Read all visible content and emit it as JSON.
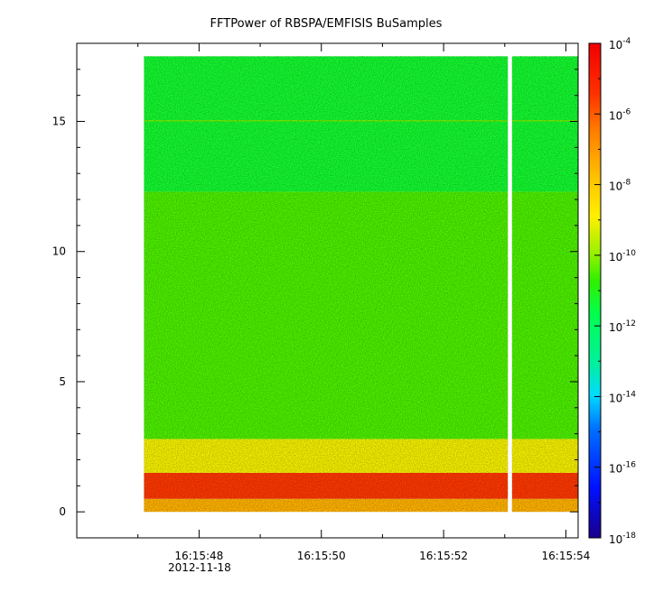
{
  "chart_data": {
    "type": "heatmap",
    "title": "FFTPower of RBSPA/EMFISIS  BuSamples",
    "xlabel": "",
    "ylabel": "",
    "x_ticks": [
      "16:15:48",
      "16:15:50",
      "16:15:52",
      "16:15:54"
    ],
    "x_date_label": "2012-11-18",
    "x_range_seconds": [
      46.0,
      54.2
    ],
    "data_time_range_seconds": [
      47.1,
      54.2
    ],
    "gap_seconds": [
      53.05,
      53.12
    ],
    "y_ticks": [
      0,
      5,
      10,
      15
    ],
    "ylim": [
      -1.0,
      18.0
    ],
    "data_frequency_range": [
      0.0,
      17.5
    ],
    "colorbar": {
      "scale": "log",
      "range": [
        1e-18,
        0.0001
      ],
      "tick_bases": [
        "10",
        "10",
        "10",
        "10",
        "10",
        "10",
        "10",
        "10"
      ],
      "tick_exponents": [
        "-18",
        "-16",
        "-14",
        "-12",
        "-10",
        "-8",
        "-6",
        "-4"
      ]
    },
    "features": [
      {
        "frequency_range": [
          0.0,
          0.5
        ],
        "log10_power": -7.5
      },
      {
        "frequency_range": [
          0.5,
          1.5
        ],
        "log10_power": -5.5
      },
      {
        "frequency_range": [
          1.5,
          2.8
        ],
        "log10_power": -9.0
      },
      {
        "frequency_range": [
          2.8,
          12.3
        ],
        "log10_power": -10.5
      },
      {
        "frequency_range": [
          12.3,
          17.5
        ],
        "log10_power": -11.3
      },
      {
        "frequency_range": [
          15.0,
          15.05
        ],
        "log10_power": -10.2
      }
    ]
  }
}
